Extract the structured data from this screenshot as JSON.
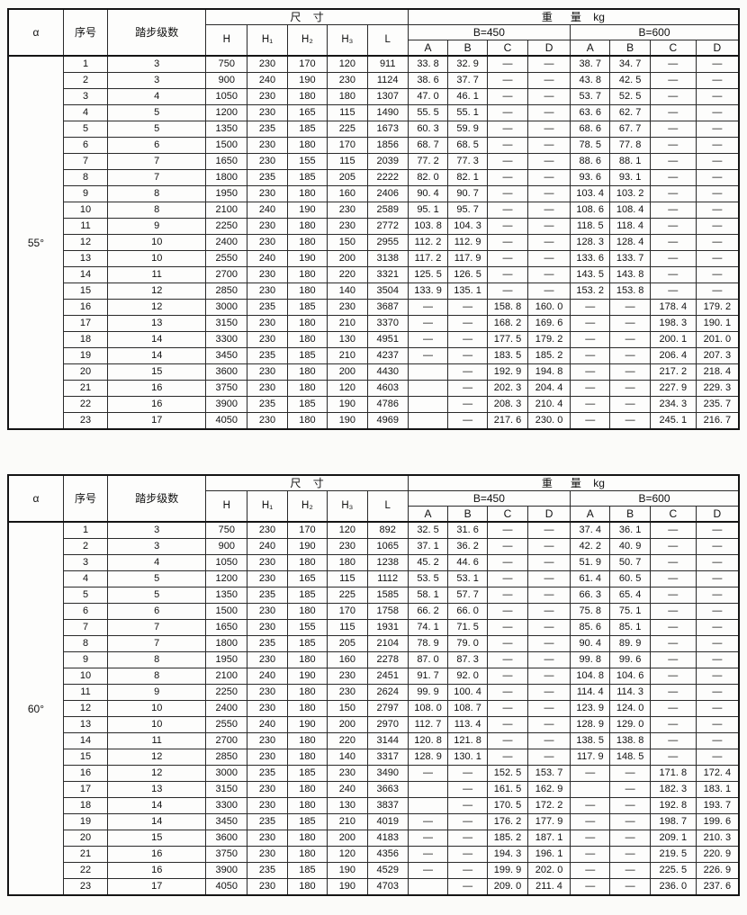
{
  "header": {
    "alpha": "α",
    "serial": "序号",
    "steps": "踏步级数",
    "dims": "尺    寸",
    "weight": "重      量    kg",
    "dim_cols": [
      "H",
      "H₁",
      "H₂",
      "H₃",
      "L"
    ],
    "b450": "B=450",
    "b600": "B=600",
    "abcd": [
      "A",
      "B",
      "C",
      "D"
    ]
  },
  "tables": [
    {
      "alpha": "55°",
      "rows": [
        [
          "1",
          "3",
          "750",
          "230",
          "170",
          "120",
          "911",
          "33. 8",
          "32. 9",
          "—",
          "—",
          "38. 7",
          "34. 7",
          "—",
          "—"
        ],
        [
          "2",
          "3",
          "900",
          "240",
          "190",
          "230",
          "1124",
          "38. 6",
          "37. 7",
          "—",
          "—",
          "43. 8",
          "42. 5",
          "—",
          "—"
        ],
        [
          "3",
          "4",
          "1050",
          "230",
          "180",
          "180",
          "1307",
          "47. 0",
          "46. 1",
          "—",
          "—",
          "53. 7",
          "52. 5",
          "—",
          "—"
        ],
        [
          "4",
          "5",
          "1200",
          "230",
          "165",
          "115",
          "1490",
          "55. 5",
          "55. 1",
          "—",
          "—",
          "63. 6",
          "62. 7",
          "—",
          "—"
        ],
        [
          "5",
          "5",
          "1350",
          "235",
          "185",
          "225",
          "1673",
          "60. 3",
          "59. 9",
          "—",
          "—",
          "68. 6",
          "67. 7",
          "—",
          "—"
        ],
        [
          "6",
          "6",
          "1500",
          "230",
          "180",
          "170",
          "1856",
          "68. 7",
          "68. 5",
          "—",
          "—",
          "78. 5",
          "77. 8",
          "—",
          "—"
        ],
        [
          "7",
          "7",
          "1650",
          "230",
          "155",
          "115",
          "2039",
          "77. 2",
          "77. 3",
          "—",
          "—",
          "88. 6",
          "88. 1",
          "—",
          "—"
        ],
        [
          "8",
          "7",
          "1800",
          "235",
          "185",
          "205",
          "2222",
          "82. 0",
          "82. 1",
          "—",
          "—",
          "93. 6",
          "93. 1",
          "—",
          "—"
        ],
        [
          "9",
          "8",
          "1950",
          "230",
          "180",
          "160",
          "2406",
          "90. 4",
          "90. 7",
          "—",
          "—",
          "103. 4",
          "103. 2",
          "—",
          "—"
        ],
        [
          "10",
          "8",
          "2100",
          "240",
          "190",
          "230",
          "2589",
          "95. 1",
          "95. 7",
          "—",
          "—",
          "108. 6",
          "108. 4",
          "—",
          "—"
        ],
        [
          "11",
          "9",
          "2250",
          "230",
          "180",
          "230",
          "2772",
          "103. 8",
          "104. 3",
          "—",
          "—",
          "118. 5",
          "118. 4",
          "—",
          "—"
        ],
        [
          "12",
          "10",
          "2400",
          "230",
          "180",
          "150",
          "2955",
          "112. 2",
          "112. 9",
          "—",
          "—",
          "128. 3",
          "128. 4",
          "—",
          "—"
        ],
        [
          "13",
          "10",
          "2550",
          "240",
          "190",
          "200",
          "3138",
          "117. 2",
          "117. 9",
          "—",
          "—",
          "133. 6",
          "133. 7",
          "—",
          "—"
        ],
        [
          "14",
          "11",
          "2700",
          "230",
          "180",
          "220",
          "3321",
          "125. 5",
          "126. 5",
          "—",
          "—",
          "143. 5",
          "143. 8",
          "—",
          "—"
        ],
        [
          "15",
          "12",
          "2850",
          "230",
          "180",
          "140",
          "3504",
          "133. 9",
          "135. 1",
          "—",
          "—",
          "153. 2",
          "153. 8",
          "—",
          "—"
        ],
        [
          "16",
          "12",
          "3000",
          "235",
          "185",
          "230",
          "3687",
          "—",
          "—",
          "158. 8",
          "160. 0",
          "—",
          "—",
          "178. 4",
          "179. 2"
        ],
        [
          "17",
          "13",
          "3150",
          "230",
          "180",
          "210",
          "3370",
          "—",
          "—",
          "168. 2",
          "169. 6",
          "—",
          "—",
          "198. 3",
          "190. 1"
        ],
        [
          "18",
          "14",
          "3300",
          "230",
          "180",
          "130",
          "4951",
          "—",
          "—",
          "177. 5",
          "179. 2",
          "—",
          "—",
          "200. 1",
          "201. 0"
        ],
        [
          "19",
          "14",
          "3450",
          "235",
          "185",
          "210",
          "4237",
          "—",
          "—",
          "183. 5",
          "185. 2",
          "—",
          "—",
          "206. 4",
          "207. 3"
        ],
        [
          "20",
          "15",
          "3600",
          "230",
          "180",
          "200",
          "4430",
          "",
          "—",
          "192. 9",
          "194. 8",
          "—",
          "—",
          "217. 2",
          "218. 4"
        ],
        [
          "21",
          "16",
          "3750",
          "230",
          "180",
          "120",
          "4603",
          "",
          "—",
          "202. 3",
          "204. 4",
          "—",
          "—",
          "227. 9",
          "229. 3"
        ],
        [
          "22",
          "16",
          "3900",
          "235",
          "185",
          "190",
          "4786",
          "",
          "—",
          "208. 3",
          "210. 4",
          "—",
          "—",
          "234. 3",
          "235. 7"
        ],
        [
          "23",
          "17",
          "4050",
          "230",
          "180",
          "190",
          "4969",
          "",
          "—",
          "217. 6",
          "230. 0",
          "—",
          "—",
          "245. 1",
          "216. 7"
        ]
      ]
    },
    {
      "alpha": "60°",
      "rows": [
        [
          "1",
          "3",
          "750",
          "230",
          "170",
          "120",
          "892",
          "32. 5",
          "31. 6",
          "—",
          "—",
          "37. 4",
          "36. 1",
          "—",
          "—"
        ],
        [
          "2",
          "3",
          "900",
          "240",
          "190",
          "230",
          "1065",
          "37. 1",
          "36. 2",
          "—",
          "—",
          "42. 2",
          "40. 9",
          "—",
          "—"
        ],
        [
          "3",
          "4",
          "1050",
          "230",
          "180",
          "180",
          "1238",
          "45. 2",
          "44. 6",
          "—",
          "—",
          "51. 9",
          "50. 7",
          "—",
          "—"
        ],
        [
          "4",
          "5",
          "1200",
          "230",
          "165",
          "115",
          "1112",
          "53. 5",
          "53. 1",
          "—",
          "—",
          "61. 4",
          "60. 5",
          "—",
          "—"
        ],
        [
          "5",
          "5",
          "1350",
          "235",
          "185",
          "225",
          "1585",
          "58. 1",
          "57. 7",
          "—",
          "—",
          "66. 3",
          "65. 4",
          "—",
          "—"
        ],
        [
          "6",
          "6",
          "1500",
          "230",
          "180",
          "170",
          "1758",
          "66. 2",
          "66. 0",
          "—",
          "—",
          "75. 8",
          "75. 1",
          "—",
          "—"
        ],
        [
          "7",
          "7",
          "1650",
          "230",
          "155",
          "115",
          "1931",
          "74. 1",
          "71. 5",
          "—",
          "—",
          "85. 6",
          "85. 1",
          "—",
          "—"
        ],
        [
          "8",
          "7",
          "1800",
          "235",
          "185",
          "205",
          "2104",
          "78. 9",
          "79. 0",
          "—",
          "—",
          "90. 4",
          "89. 9",
          "—",
          "—"
        ],
        [
          "9",
          "8",
          "1950",
          "230",
          "180",
          "160",
          "2278",
          "87. 0",
          "87. 3",
          "—",
          "—",
          "99. 8",
          "99. 6",
          "—",
          "—"
        ],
        [
          "10",
          "8",
          "2100",
          "240",
          "190",
          "230",
          "2451",
          "91. 7",
          "92. 0",
          "—",
          "—",
          "104. 8",
          "104. 6",
          "—",
          "—"
        ],
        [
          "11",
          "9",
          "2250",
          "230",
          "180",
          "230",
          "2624",
          "99. 9",
          "100. 4",
          "—",
          "—",
          "114. 4",
          "114. 3",
          "—",
          "—"
        ],
        [
          "12",
          "10",
          "2400",
          "230",
          "180",
          "150",
          "2797",
          "108. 0",
          "108. 7",
          "—",
          "—",
          "123. 9",
          "124. 0",
          "—",
          "—"
        ],
        [
          "13",
          "10",
          "2550",
          "240",
          "190",
          "200",
          "2970",
          "112. 7",
          "113. 4",
          "—",
          "—",
          "128. 9",
          "129. 0",
          "—",
          "—"
        ],
        [
          "14",
          "11",
          "2700",
          "230",
          "180",
          "220",
          "3144",
          "120. 8",
          "121. 8",
          "—",
          "—",
          "138. 5",
          "138. 8",
          "—",
          "—"
        ],
        [
          "15",
          "12",
          "2850",
          "230",
          "180",
          "140",
          "3317",
          "128. 9",
          "130. 1",
          "—",
          "—",
          "117. 9",
          "148. 5",
          "—",
          "—"
        ],
        [
          "16",
          "12",
          "3000",
          "235",
          "185",
          "230",
          "3490",
          "—",
          "—",
          "152. 5",
          "153. 7",
          "—",
          "—",
          "171. 8",
          "172. 4"
        ],
        [
          "17",
          "13",
          "3150",
          "230",
          "180",
          "240",
          "3663",
          "",
          "—",
          "161. 5",
          "162. 9",
          "",
          "—",
          "182. 3",
          "183. 1"
        ],
        [
          "18",
          "14",
          "3300",
          "230",
          "180",
          "130",
          "3837",
          "",
          "—",
          "170. 5",
          "172. 2",
          "—",
          "—",
          "192. 8",
          "193. 7"
        ],
        [
          "19",
          "14",
          "3450",
          "235",
          "185",
          "210",
          "4019",
          "—",
          "—",
          "176. 2",
          "177. 9",
          "—",
          "—",
          "198. 7",
          "199. 6"
        ],
        [
          "20",
          "15",
          "3600",
          "230",
          "180",
          "200",
          "4183",
          "—",
          "—",
          "185. 2",
          "187. 1",
          "—",
          "—",
          "209. 1",
          "210. 3"
        ],
        [
          "21",
          "16",
          "3750",
          "230",
          "180",
          "120",
          "4356",
          "—",
          "—",
          "194. 3",
          "196. 1",
          "—",
          "—",
          "219. 5",
          "220. 9"
        ],
        [
          "22",
          "16",
          "3900",
          "235",
          "185",
          "190",
          "4529",
          "—",
          "—",
          "199. 9",
          "202. 0",
          "—",
          "—",
          "225. 5",
          "226. 9"
        ],
        [
          "23",
          "17",
          "4050",
          "230",
          "180",
          "190",
          "4703",
          "",
          "—",
          "209. 0",
          "211. 4",
          "—",
          "—",
          "236. 0",
          "237. 6"
        ]
      ]
    }
  ]
}
